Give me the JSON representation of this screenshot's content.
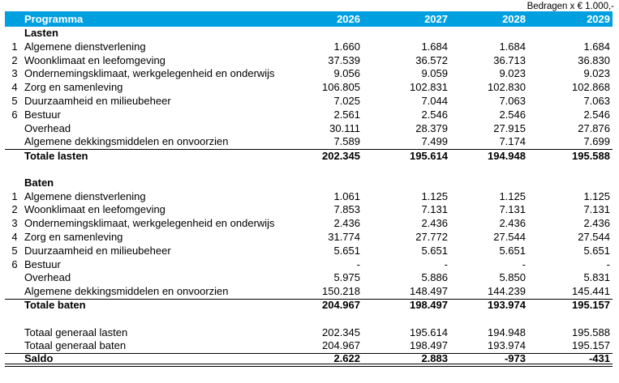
{
  "note": "Bedragen x € 1.000,-",
  "colors": {
    "header_bg": "#00A0E0",
    "header_text": "#FFFFFF"
  },
  "table": {
    "program_header": "Programma",
    "years": [
      "2026",
      "2027",
      "2028",
      "2029"
    ],
    "sections": [
      {
        "title": "Lasten",
        "rows": [
          {
            "num": "1",
            "label": "Algemene dienstverlening",
            "values": [
              "1.660",
              "1.684",
              "1.684",
              "1.684"
            ]
          },
          {
            "num": "2",
            "label": "Woonklimaat en leefomgeving",
            "values": [
              "37.539",
              "36.572",
              "36.713",
              "36.830"
            ]
          },
          {
            "num": "3",
            "label": "Ondernemingsklimaat, werkgelegenheid en onderwijs",
            "values": [
              "9.056",
              "9.059",
              "9.023",
              "9.023"
            ]
          },
          {
            "num": "4",
            "label": "Zorg en samenleving",
            "values": [
              "106.805",
              "102.831",
              "102.830",
              "102.868"
            ]
          },
          {
            "num": "5",
            "label": "Duurzaamheid en milieubeheer",
            "values": [
              "7.025",
              "7.044",
              "7.063",
              "7.063"
            ]
          },
          {
            "num": "6",
            "label": "Bestuur",
            "values": [
              "2.561",
              "2.546",
              "2.546",
              "2.546"
            ]
          },
          {
            "num": "",
            "label": "Overhead",
            "values": [
              "30.111",
              "28.379",
              "27.915",
              "27.876"
            ]
          },
          {
            "num": "",
            "label": "Algemene dekkingsmiddelen en onvoorzien",
            "values": [
              "7.589",
              "7.499",
              "7.174",
              "7.699"
            ]
          }
        ],
        "total": {
          "label": "Totale lasten",
          "values": [
            "202.345",
            "195.614",
            "194.948",
            "195.588"
          ]
        }
      },
      {
        "title": "Baten",
        "rows": [
          {
            "num": "1",
            "label": "Algemene dienstverlening",
            "values": [
              "1.061",
              "1.125",
              "1.125",
              "1.125"
            ]
          },
          {
            "num": "2",
            "label": "Woonklimaat en leefomgeving",
            "values": [
              "7.853",
              "7.131",
              "7.131",
              "7.131"
            ]
          },
          {
            "num": "3",
            "label": "Ondernemingsklimaat, werkgelegenheid en onderwijs",
            "values": [
              "2.436",
              "2.436",
              "2.436",
              "2.436"
            ]
          },
          {
            "num": "4",
            "label": "Zorg en samenleving",
            "values": [
              "31.774",
              "27.772",
              "27.544",
              "27.544"
            ]
          },
          {
            "num": "5",
            "label": "Duurzaamheid en milieubeheer",
            "values": [
              "5.651",
              "5.651",
              "5.651",
              "5.651"
            ]
          },
          {
            "num": "6",
            "label": "Bestuur",
            "values": [
              "-",
              "-",
              "-",
              "-"
            ]
          },
          {
            "num": "",
            "label": "Overhead",
            "values": [
              "5.975",
              "5.886",
              "5.850",
              "5.831"
            ]
          },
          {
            "num": "",
            "label": "Algemene dekkingsmiddelen en onvoorzien",
            "values": [
              "150.218",
              "148.497",
              "144.239",
              "145.441"
            ]
          }
        ],
        "total": {
          "label": "Totale baten",
          "values": [
            "204.967",
            "198.497",
            "193.974",
            "195.157"
          ]
        }
      }
    ],
    "summary_rows": [
      {
        "label": "Totaal generaal lasten",
        "values": [
          "202.345",
          "195.614",
          "194.948",
          "195.588"
        ]
      },
      {
        "label": "Totaal generaal baten",
        "values": [
          "204.967",
          "198.497",
          "193.974",
          "195.157"
        ]
      }
    ],
    "saldo_row": {
      "label": "Saldo",
      "values": [
        "2.622",
        "2.883",
        "-973",
        "-431"
      ]
    }
  }
}
